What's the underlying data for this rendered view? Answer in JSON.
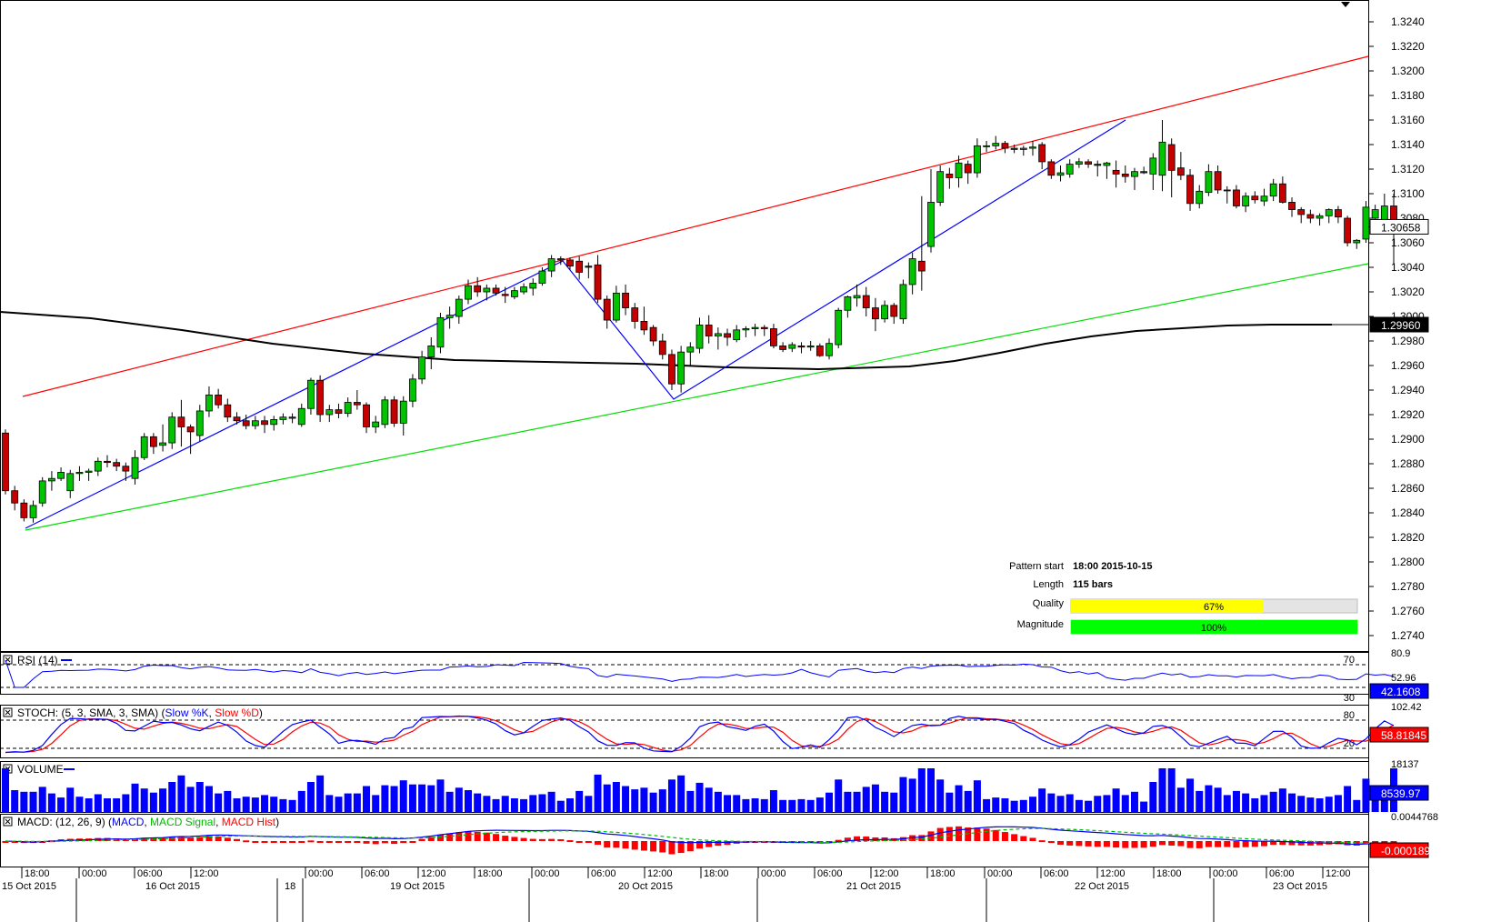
{
  "price_axis": {
    "ticks": [
      "1.3240",
      "1.3220",
      "1.3200",
      "1.3180",
      "1.3160",
      "1.3140",
      "1.3120",
      "1.3100",
      "1.3080",
      "1.3060",
      "1.3040",
      "1.3020",
      "1.3000",
      "1.2980",
      "1.2960",
      "1.2940",
      "1.2920",
      "1.2900",
      "1.2880",
      "1.2860",
      "1.2840",
      "1.2820",
      "1.2800",
      "1.2780",
      "1.2760",
      "1.2740"
    ],
    "current_price_label": "1.30658",
    "ma_price_label": "1.29960"
  },
  "pattern_info": {
    "pattern_start_label": "Pattern start",
    "pattern_start_value": "18:00 2015-10-15",
    "length_label": "Length",
    "length_value": "115 bars",
    "quality_label": "Quality",
    "quality_value": "67%",
    "quality_fraction": 0.67,
    "magnitude_label": "Magnitude",
    "magnitude_value": "100%",
    "magnitude_fraction": 1.0
  },
  "rsi_panel": {
    "title": "RSI (14)",
    "level_70": "70",
    "level_30": "30",
    "axis_top": "80.9",
    "axis_mid": "52.96",
    "value_label": "42.1608"
  },
  "stoch_panel": {
    "title_prefix": "STOCH: (5, 3, SMA, 3, SMA) (",
    "k_label": "Slow %K",
    "d_label": "Slow %D",
    "title_suffix": ")",
    "level_80": "80",
    "level_20": "20",
    "axis_top": "102.42",
    "value_label": "58.81845"
  },
  "volume_panel": {
    "title": "VOLUME",
    "axis_top": "18137",
    "value_label": "8539.97"
  },
  "macd_panel": {
    "title_prefix": "MACD: (12, 26, 9) (",
    "macd_label": "MACD",
    "signal_label": "MACD Signal",
    "hist_label": "MACD Hist",
    "title_suffix": ")",
    "axis_top": "0.0044768",
    "value_label": "-0.0001892"
  },
  "time_axis": {
    "hour_labels": [
      "18:00",
      "00:00",
      "06:00",
      "12:00",
      "00:00",
      "06:00",
      "12:00",
      "18:00",
      "00:00",
      "06:00",
      "12:00",
      "18:00",
      "00:00",
      "06:00",
      "12:00",
      "18:00",
      "00:00",
      "06:00",
      "12:00",
      "18:00",
      "00:00",
      "06:00",
      "12:00"
    ],
    "date_labels": [
      "15 Oct 2015",
      "16 Oct 2015",
      "18",
      "19 Oct 2015",
      "20 Oct 2015",
      "21 Oct 2015",
      "22 Oct 2015",
      "23 Oct 2015"
    ]
  },
  "colors": {
    "bull": "#00c400",
    "bear": "#c40000",
    "upper_channel": "#ff0000",
    "lower_channel": "#00dd00",
    "zigzag": "#0000ff",
    "moving_average": "#000000",
    "macd_line": "#0000ff",
    "macd_signal": "#00bb00",
    "macd_hist": "#ff0000",
    "stoch_k": "#0000ff",
    "stoch_d": "#ff0000",
    "volume": "#0000ff",
    "quality_bar": "#ffff00",
    "magnitude_bar": "#00ff00"
  },
  "chart_data": {
    "type": "candlestick",
    "symbol_timeframe": "hourly",
    "ylim": [
      1.2733,
      1.3255
    ],
    "candles": [
      [
        1.2905,
        1.2908,
        1.2855,
        1.2858
      ],
      [
        1.2858,
        1.2862,
        1.2842,
        1.2848
      ],
      [
        1.2848,
        1.2851,
        1.2833,
        1.2836
      ],
      [
        1.2836,
        1.285,
        1.2832,
        1.2846
      ],
      [
        1.2848,
        1.2869,
        1.2845,
        1.2866
      ],
      [
        1.2866,
        1.2874,
        1.2858,
        1.2868
      ],
      [
        1.2868,
        1.2877,
        1.2866,
        1.2873
      ],
      [
        1.2858,
        1.2875,
        1.2852,
        1.2872
      ],
      [
        1.2872,
        1.2878,
        1.2866,
        1.2873
      ],
      [
        1.2873,
        1.2876,
        1.2866,
        1.2874
      ],
      [
        1.2874,
        1.2885,
        1.287,
        1.2882
      ],
      [
        1.2882,
        1.2887,
        1.2877,
        1.2881
      ],
      [
        1.2881,
        1.2884,
        1.2874,
        1.2878
      ],
      [
        1.2878,
        1.2881,
        1.2866,
        1.2874
      ],
      [
        1.2868,
        1.2891,
        1.2863,
        1.2885
      ],
      [
        1.2885,
        1.2905,
        1.2883,
        1.2902
      ],
      [
        1.2902,
        1.2905,
        1.2888,
        1.2894
      ],
      [
        1.2895,
        1.2912,
        1.289,
        1.2897
      ],
      [
        1.2897,
        1.2922,
        1.2892,
        1.2918
      ],
      [
        1.2918,
        1.2932,
        1.2894,
        1.291
      ],
      [
        1.291,
        1.2912,
        1.2888,
        1.2906
      ],
      [
        1.2903,
        1.2928,
        1.2898,
        1.2923
      ],
      [
        1.2923,
        1.2943,
        1.2918,
        1.2936
      ],
      [
        1.2936,
        1.2941,
        1.2925,
        1.2928
      ],
      [
        1.2928,
        1.2933,
        1.2914,
        1.2918
      ],
      [
        1.2918,
        1.2922,
        1.2912,
        1.2915
      ],
      [
        1.2915,
        1.292,
        1.2908,
        1.2911
      ],
      [
        1.2911,
        1.2919,
        1.2908,
        1.2915
      ],
      [
        1.2915,
        1.2919,
        1.2905,
        1.2912
      ],
      [
        1.2912,
        1.2919,
        1.2907,
        1.2916
      ],
      [
        1.2916,
        1.2921,
        1.2912,
        1.2918
      ],
      [
        1.2918,
        1.2921,
        1.2913,
        1.2917
      ],
      [
        1.2912,
        1.2929,
        1.291,
        1.2925
      ],
      [
        1.2925,
        1.295,
        1.292,
        1.2948
      ],
      [
        1.2948,
        1.2952,
        1.2914,
        1.292
      ],
      [
        1.292,
        1.2928,
        1.2914,
        1.2924
      ],
      [
        1.2924,
        1.2929,
        1.2917,
        1.2921
      ],
      [
        1.2921,
        1.2934,
        1.2918,
        1.293
      ],
      [
        1.293,
        1.294,
        1.2924,
        1.2928
      ],
      [
        1.2928,
        1.293,
        1.2905,
        1.291
      ],
      [
        1.291,
        1.2919,
        1.2905,
        1.2914
      ],
      [
        1.2912,
        1.2935,
        1.2909,
        1.2932
      ],
      [
        1.2932,
        1.2935,
        1.291,
        1.2913
      ],
      [
        1.2913,
        1.2935,
        1.2903,
        1.2931
      ],
      [
        1.2931,
        1.2953,
        1.2926,
        1.2949
      ],
      [
        1.2949,
        1.2972,
        1.2945,
        1.2967
      ],
      [
        1.2967,
        1.2983,
        1.2957,
        1.2976
      ],
      [
        1.2975,
        1.3003,
        1.297,
        1.2999
      ],
      [
        1.2999,
        1.3008,
        1.299,
        1.3001
      ],
      [
        1.3,
        1.3017,
        1.2994,
        1.3014
      ],
      [
        1.3014,
        1.303,
        1.301,
        1.3025
      ],
      [
        1.3025,
        1.3032,
        1.3016,
        1.302
      ],
      [
        1.302,
        1.3026,
        1.3013,
        1.3023
      ],
      [
        1.3023,
        1.3026,
        1.3017,
        1.3019
      ],
      [
        1.3018,
        1.3024,
        1.3011,
        1.3017
      ],
      [
        1.3016,
        1.3024,
        1.3014,
        1.3021
      ],
      [
        1.302,
        1.3027,
        1.3018,
        1.3024
      ],
      [
        1.3023,
        1.3031,
        1.3017,
        1.3027
      ],
      [
        1.3027,
        1.304,
        1.3025,
        1.3037
      ],
      [
        1.3037,
        1.305,
        1.3032,
        1.3047
      ],
      [
        1.3047,
        1.3049,
        1.3042,
        1.3046
      ],
      [
        1.3046,
        1.3048,
        1.3038,
        1.3041
      ],
      [
        1.3045,
        1.3049,
        1.303,
        1.3036
      ],
      [
        1.3041,
        1.3044,
        1.3031,
        1.304
      ],
      [
        1.3042,
        1.305,
        1.3011,
        1.3014
      ],
      [
        1.3014,
        1.3017,
        1.299,
        1.2997
      ],
      [
        1.2997,
        1.3025,
        1.2995,
        1.3019
      ],
      [
        1.3019,
        1.3026,
        1.3001,
        1.3007
      ],
      [
        1.3007,
        1.3011,
        1.299,
        1.2996
      ],
      [
        1.2996,
        1.3008,
        1.2985,
        1.2989
      ],
      [
        1.2991,
        1.2993,
        1.2976,
        1.298
      ],
      [
        1.298,
        1.2986,
        1.2965,
        1.2969
      ],
      [
        1.2969,
        1.2973,
        1.294,
        1.2945
      ],
      [
        1.2945,
        1.2976,
        1.2938,
        1.2971
      ],
      [
        1.2971,
        1.2979,
        1.296,
        1.2975
      ],
      [
        1.2974,
        1.2999,
        1.297,
        1.2993
      ],
      [
        1.2993,
        1.3001,
        1.2978,
        1.2984
      ],
      [
        1.2984,
        1.2991,
        1.2973,
        1.2986
      ],
      [
        1.2986,
        1.299,
        1.2976,
        1.2983
      ],
      [
        1.2981,
        1.2993,
        1.2979,
        1.2989
      ],
      [
        1.2989,
        1.2992,
        1.2983,
        1.299
      ],
      [
        1.299,
        1.2994,
        1.2984,
        1.2991
      ],
      [
        1.2991,
        1.2993,
        1.2984,
        1.299
      ],
      [
        1.299,
        1.2994,
        1.2974,
        1.2976
      ],
      [
        1.2976,
        1.2979,
        1.2971,
        1.2973
      ],
      [
        1.2974,
        1.2979,
        1.2971,
        1.2977
      ],
      [
        1.2976,
        1.2979,
        1.297,
        1.2975
      ],
      [
        1.2975,
        1.298,
        1.2972,
        1.2976
      ],
      [
        1.2976,
        1.2978,
        1.2967,
        1.2968
      ],
      [
        1.2968,
        1.2982,
        1.2965,
        1.2978
      ],
      [
        1.2977,
        1.3007,
        1.2974,
        1.3005
      ],
      [
        1.3005,
        1.3017,
        1.2999,
        1.3016
      ],
      [
        1.3015,
        1.3026,
        1.3008,
        1.3017
      ],
      [
        1.3017,
        1.3024,
        1.3,
        1.3007
      ],
      [
        1.3007,
        1.3015,
        1.2988,
        1.2998
      ],
      [
        1.2998,
        1.3013,
        1.2995,
        1.3009
      ],
      [
        1.3009,
        1.3011,
        1.2994,
        1.3
      ],
      [
        1.2998,
        1.303,
        1.2994,
        1.3026
      ],
      [
        1.3026,
        1.3052,
        1.3018,
        1.3047
      ],
      [
        1.3045,
        1.3098,
        1.3021,
        1.3037
      ],
      [
        1.3057,
        1.312,
        1.3052,
        1.3093
      ],
      [
        1.3093,
        1.3123,
        1.309,
        1.3118
      ],
      [
        1.3116,
        1.3121,
        1.3104,
        1.3113
      ],
      [
        1.3113,
        1.3131,
        1.3105,
        1.3125
      ],
      [
        1.3124,
        1.3127,
        1.3108,
        1.3117
      ],
      [
        1.3117,
        1.3145,
        1.3113,
        1.3139
      ],
      [
        1.3139,
        1.3143,
        1.3134,
        1.3139
      ],
      [
        1.3139,
        1.3147,
        1.3136,
        1.3141
      ],
      [
        1.3141,
        1.3143,
        1.3133,
        1.3137
      ],
      [
        1.3137,
        1.314,
        1.3133,
        1.3136
      ],
      [
        1.3136,
        1.3139,
        1.3131,
        1.3137
      ],
      [
        1.3137,
        1.3143,
        1.3131,
        1.3138
      ],
      [
        1.314,
        1.3142,
        1.312,
        1.3126
      ],
      [
        1.3126,
        1.3128,
        1.3112,
        1.3115
      ],
      [
        1.3115,
        1.3123,
        1.311,
        1.3117
      ],
      [
        1.3116,
        1.3128,
        1.3113,
        1.3124
      ],
      [
        1.3124,
        1.3129,
        1.3121,
        1.3126
      ],
      [
        1.3126,
        1.3128,
        1.3121,
        1.3124
      ],
      [
        1.3124,
        1.3127,
        1.3114,
        1.3123
      ],
      [
        1.3123,
        1.3126,
        1.3112,
        1.3125
      ],
      [
        1.3119,
        1.3127,
        1.3105,
        1.3116
      ],
      [
        1.3116,
        1.3123,
        1.3109,
        1.3114
      ],
      [
        1.3114,
        1.3121,
        1.3103,
        1.3118
      ],
      [
        1.3118,
        1.3122,
        1.3116,
        1.3117
      ],
      [
        1.3116,
        1.3133,
        1.3103,
        1.3129
      ],
      [
        1.3115,
        1.316,
        1.3102,
        1.3142
      ],
      [
        1.314,
        1.3145,
        1.3097,
        1.3119
      ],
      [
        1.3121,
        1.3134,
        1.3111,
        1.3115
      ],
      [
        1.3115,
        1.312,
        1.3086,
        1.3092
      ],
      [
        1.3092,
        1.3107,
        1.3088,
        1.3102
      ],
      [
        1.3101,
        1.3124,
        1.3098,
        1.3118
      ],
      [
        1.3118,
        1.3123,
        1.31,
        1.3103
      ],
      [
        1.3103,
        1.3106,
        1.3092,
        1.3103
      ],
      [
        1.3103,
        1.3107,
        1.3088,
        1.309
      ],
      [
        1.309,
        1.3101,
        1.3085,
        1.3098
      ],
      [
        1.3098,
        1.3102,
        1.3092,
        1.3095
      ],
      [
        1.3094,
        1.3104,
        1.309,
        1.3098
      ],
      [
        1.3098,
        1.3112,
        1.3094,
        1.3108
      ],
      [
        1.3108,
        1.3114,
        1.3092,
        1.3093
      ],
      [
        1.3093,
        1.3097,
        1.3081,
        1.3087
      ],
      [
        1.3087,
        1.3089,
        1.3076,
        1.3083
      ],
      [
        1.3083,
        1.3087,
        1.3076,
        1.308
      ],
      [
        1.308,
        1.3084,
        1.3074,
        1.3082
      ],
      [
        1.3082,
        1.3088,
        1.3076,
        1.3087
      ],
      [
        1.3087,
        1.309,
        1.3076,
        1.3081
      ],
      [
        1.308,
        1.3082,
        1.3057,
        1.306
      ],
      [
        1.306,
        1.3063,
        1.3055,
        1.3062
      ],
      [
        1.3063,
        1.3094,
        1.306,
        1.3089
      ],
      [
        1.308,
        1.3091,
        1.3076,
        1.3087
      ],
      [
        1.3078,
        1.31,
        1.3075,
        1.309
      ],
      [
        1.309,
        1.31,
        1.3042,
        1.3073
      ]
    ]
  }
}
